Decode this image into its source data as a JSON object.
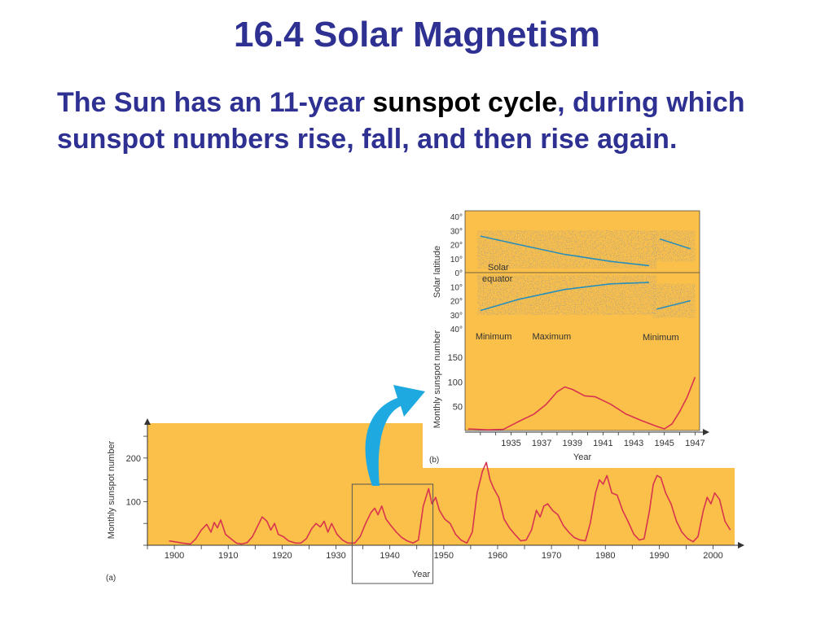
{
  "slide": {
    "title": "16.4 Solar Magnetism",
    "body_before": "The Sun has an 11-year ",
    "body_keyword": "sunspot cycle",
    "body_after": ", during which sunspot numbers rise, fall, and then rise again."
  },
  "colors": {
    "title": "#2e3192",
    "keyword": "#000000",
    "panel_bg": "#fbc04a",
    "curve": "#d8344f",
    "fit_line": "#2a8fb8",
    "arrow": "#1fa9e1"
  },
  "chart_data": [
    {
      "type": "line",
      "panel_label": "(a)",
      "xlabel": "Year",
      "ylabel": "Monthly sunspot number",
      "xlim": [
        1895,
        2004
      ],
      "ylim": [
        0,
        280
      ],
      "xticks": [
        1900,
        1910,
        1920,
        1930,
        1940,
        1950,
        1960,
        1970,
        1980,
        1990,
        2000
      ],
      "yticks": [
        100,
        200
      ],
      "highlight_box": [
        1933,
        1948
      ],
      "series": [
        {
          "x": [
            1899,
            1901.5,
            1903,
            1904,
            1905,
            1906,
            1906.8,
            1907.4,
            1908,
            1908.6,
            1909.5,
            1910.5,
            1911.5,
            1912.5,
            1913.5,
            1914.5,
            1915.5,
            1916.3,
            1917.2,
            1917.9,
            1918.6,
            1919.3,
            1920.2,
            1921.2,
            1922.5,
            1923.5,
            1924.5,
            1925.5,
            1926.3,
            1927.1,
            1927.8,
            1928.5,
            1929.2,
            1930.2,
            1931.2,
            1932.2,
            1933.5,
            1934.5,
            1935.5,
            1936.5,
            1937.2,
            1937.8,
            1938.5,
            1939.3,
            1940.2,
            1941.2,
            1942.2,
            1943.2,
            1944.3,
            1945.3,
            1946.2,
            1947.2,
            1947.8,
            1948.5,
            1949.2,
            1950.2,
            1951.2,
            1952.2,
            1953.2,
            1954.3,
            1955.3,
            1956.2,
            1957.2,
            1957.9,
            1958.6,
            1959.3,
            1960.2,
            1961.2,
            1962.2,
            1963.2,
            1964.3,
            1965.3,
            1966.3,
            1967.2,
            1967.9,
            1968.6,
            1969.3,
            1970.2,
            1971.2,
            1972.2,
            1973.2,
            1974.2,
            1975.3,
            1976.3,
            1977.2,
            1978.2,
            1978.9,
            1979.6,
            1980.3,
            1981.2,
            1982.2,
            1983.2,
            1984.2,
            1985.3,
            1986.3,
            1987.2,
            1988.2,
            1988.9,
            1989.6,
            1990.3,
            1991.2,
            1992.2,
            1993.2,
            1994.2,
            1995.3,
            1996.3,
            1997.2,
            1998.2,
            1998.9,
            1999.6,
            2000.3,
            2001.2,
            2002.2,
            2003.2
          ],
          "y": [
            10,
            5,
            3,
            15,
            35,
            48,
            30,
            52,
            40,
            58,
            25,
            15,
            5,
            3,
            6,
            20,
            45,
            65,
            55,
            35,
            50,
            25,
            20,
            10,
            5,
            5,
            15,
            38,
            50,
            42,
            55,
            30,
            50,
            25,
            12,
            5,
            5,
            20,
            50,
            75,
            85,
            70,
            90,
            60,
            45,
            30,
            18,
            10,
            5,
            12,
            90,
            130,
            95,
            110,
            80,
            60,
            50,
            25,
            12,
            5,
            30,
            120,
            170,
            190,
            150,
            130,
            110,
            60,
            40,
            25,
            10,
            12,
            35,
            80,
            65,
            90,
            95,
            80,
            70,
            45,
            30,
            18,
            12,
            10,
            50,
            120,
            150,
            140,
            160,
            120,
            115,
            80,
            55,
            25,
            12,
            15,
            80,
            140,
            160,
            155,
            120,
            95,
            55,
            30,
            15,
            8,
            20,
            80,
            110,
            95,
            120,
            105,
            55,
            35
          ]
        }
      ]
    },
    {
      "type": "scatter",
      "panel_label": "(b)",
      "xlabel": "Year",
      "ylabel": "Solar latitude",
      "xlim": [
        1932.5,
        1947.8
      ],
      "ylim": [
        -40,
        40
      ],
      "y_ticks": [
        "40°",
        "30°",
        "20°",
        "10°",
        "0°",
        "10°",
        "20°",
        "30°",
        "40°"
      ],
      "equator_label": "Solar equator",
      "phase_labels": [
        "Minimum",
        "Maximum",
        "Minimum"
      ],
      "fit_lines": [
        {
          "x": [
            1933.5,
            1936,
            1939,
            1942,
            1944.5
          ],
          "y": [
            26,
            20,
            13,
            8,
            5
          ]
        },
        {
          "x": [
            1933.5,
            1936,
            1939,
            1942,
            1944.5
          ],
          "y": [
            -27,
            -19,
            -12,
            -8,
            -7
          ]
        },
        {
          "x": [
            1945.2,
            1947.2
          ],
          "y": [
            24,
            17
          ]
        },
        {
          "x": [
            1945,
            1947.2
          ],
          "y": [
            -26,
            -20
          ]
        }
      ]
    },
    {
      "type": "line",
      "panel_label": "(b)",
      "xlabel": "Year",
      "ylabel": "Monthly sunspot number",
      "xlim": [
        1932.5,
        1947.8
      ],
      "ylim": [
        0,
        180
      ],
      "xticks": [
        "1935",
        "1937",
        "1939",
        "1941",
        "1943",
        "1945",
        "1947"
      ],
      "yticks": [
        50,
        100,
        150
      ],
      "series": [
        {
          "x": [
            1932.7,
            1934,
            1935,
            1936,
            1937,
            1937.8,
            1938.5,
            1939,
            1939.5,
            1940.3,
            1941,
            1942,
            1943,
            1944,
            1945,
            1945.5,
            1946,
            1946.5,
            1947,
            1947.5
          ],
          "y": [
            5,
            3,
            4,
            20,
            35,
            55,
            80,
            90,
            85,
            72,
            70,
            55,
            35,
            22,
            10,
            5,
            15,
            40,
            70,
            110
          ]
        }
      ]
    }
  ]
}
